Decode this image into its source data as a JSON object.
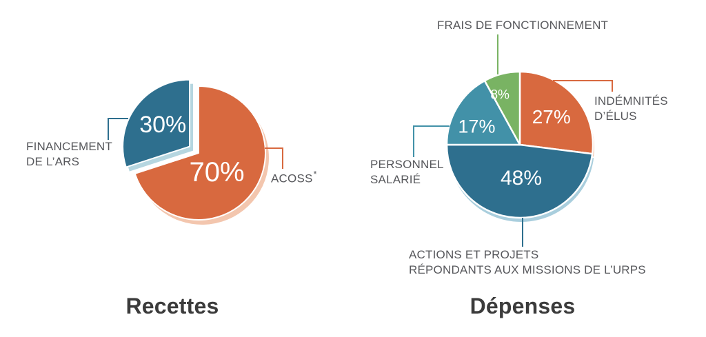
{
  "page": {
    "background": "#ffffff"
  },
  "colors": {
    "orange": "#d8693f",
    "dark_teal": "#2e6f8e",
    "light_teal": "#4291a8",
    "green": "#79b363",
    "label_text": "#56575b",
    "title_text": "#3b3b3b",
    "pct_text": "#ffffff"
  },
  "chart_data": [
    {
      "type": "pie",
      "title": "Recettes",
      "legend": "callout labels with leader lines",
      "data_labels": "percent shown inside slices",
      "slices": [
        {
          "label": "ACOSS*",
          "value_pct": 70,
          "color": "#d8693f",
          "exploded": false
        },
        {
          "label": "FINANCEMENT DE L'ARS",
          "value_pct": 30,
          "color": "#2e6f8e",
          "exploded": true
        }
      ]
    },
    {
      "type": "pie",
      "title": "Dépenses",
      "legend": "callout labels with leader lines",
      "data_labels": "percent shown inside slices",
      "slices": [
        {
          "label": "INDÉMNITÉS D'ÉLUS",
          "value_pct": 27,
          "color": "#d8693f",
          "exploded": false
        },
        {
          "label": "ACTIONS ET PROJETS RÉPONDANTS AUX MISSIONS DE L'URPS",
          "value_pct": 48,
          "color": "#2e6f8e",
          "exploded": false
        },
        {
          "label": "PERSONNEL SALARIÉ",
          "value_pct": 17,
          "color": "#4291a8",
          "exploded": false
        },
        {
          "label": "FRAIS DE FONCTIONNEMENT",
          "value_pct": 8,
          "color": "#79b363",
          "exploded": false
        }
      ]
    }
  ],
  "callouts": {
    "financement": {
      "line1": "FINANCEMENT",
      "line2": "DE L’ARS"
    },
    "acoss": {
      "text": "ACOSS",
      "superscript": "*"
    },
    "frais": {
      "line1": "FRAIS DE FONCTIONNEMENT"
    },
    "indemnites": {
      "line1": "INDÉMNITÉS",
      "line2": "D’ÉLUS"
    },
    "personnel": {
      "line1": "PERSONNEL",
      "line2": "SALARIÉ"
    },
    "actions": {
      "line1": "ACTIONS ET PROJETS",
      "line2": "RÉPONDANTS AUX MISSIONS DE L’URPS"
    }
  }
}
